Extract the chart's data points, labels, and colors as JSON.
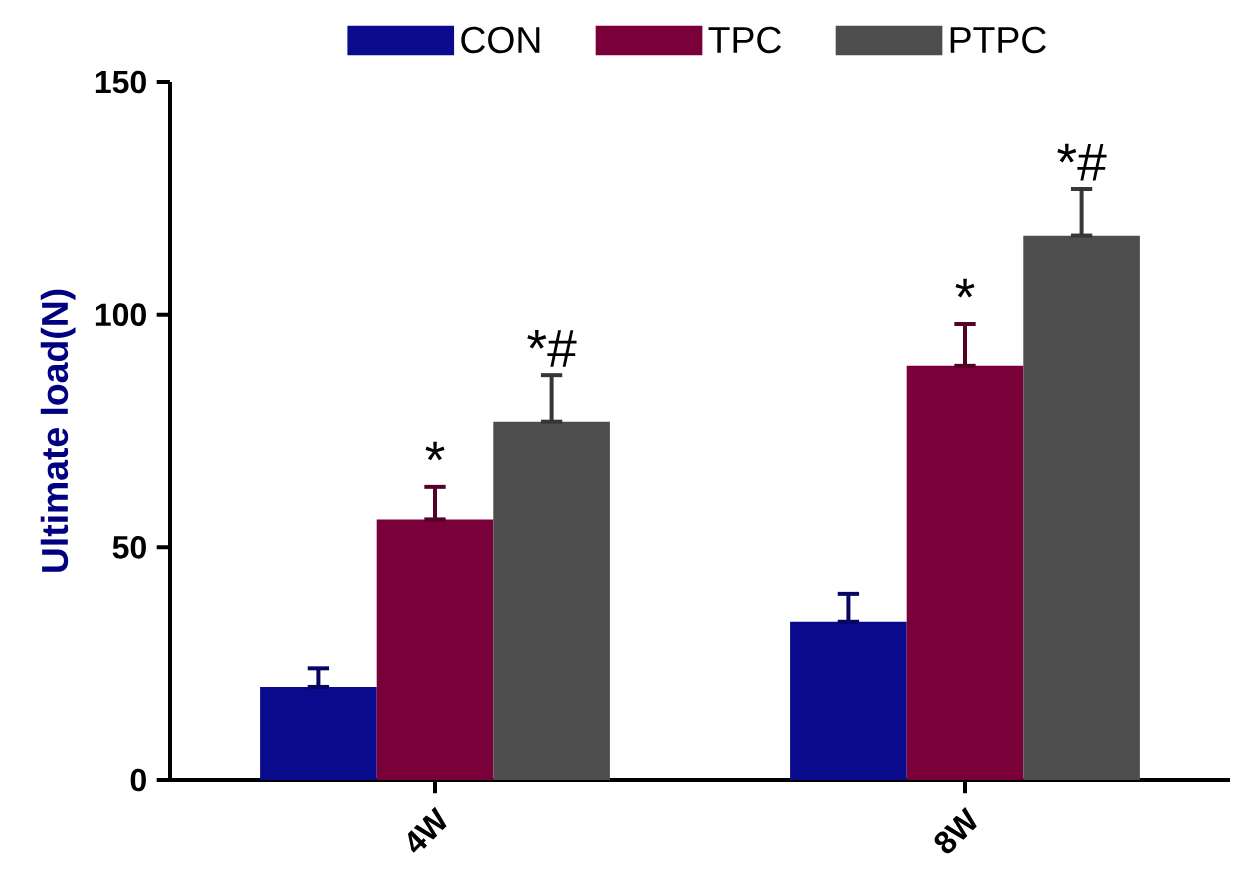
{
  "chart_data": {
    "type": "bar",
    "ylabel": "Ultimate load(N)",
    "categories": [
      "4W",
      "8W"
    ],
    "series": [
      {
        "name": "CON",
        "color": "#0a0a8c",
        "values": [
          20,
          34
        ],
        "errors": [
          [
            20,
            24
          ],
          [
            34,
            40
          ]
        ]
      },
      {
        "name": "TPC",
        "color": "#7a0039",
        "values": [
          56,
          89
        ],
        "errors": [
          [
            56,
            63
          ],
          [
            89,
            98
          ]
        ],
        "value_labels": [
          "*",
          "*"
        ]
      },
      {
        "name": "PTPC",
        "color": "#4d4d4d",
        "values": [
          77,
          117
        ],
        "errors": [
          [
            77,
            87
          ],
          [
            117,
            127
          ]
        ],
        "value_labels": [
          "*#",
          "*#"
        ]
      }
    ],
    "ylim": [
      0,
      150
    ],
    "yticks": [
      0,
      50,
      100,
      150
    ],
    "grid": false,
    "legend": "top"
  }
}
